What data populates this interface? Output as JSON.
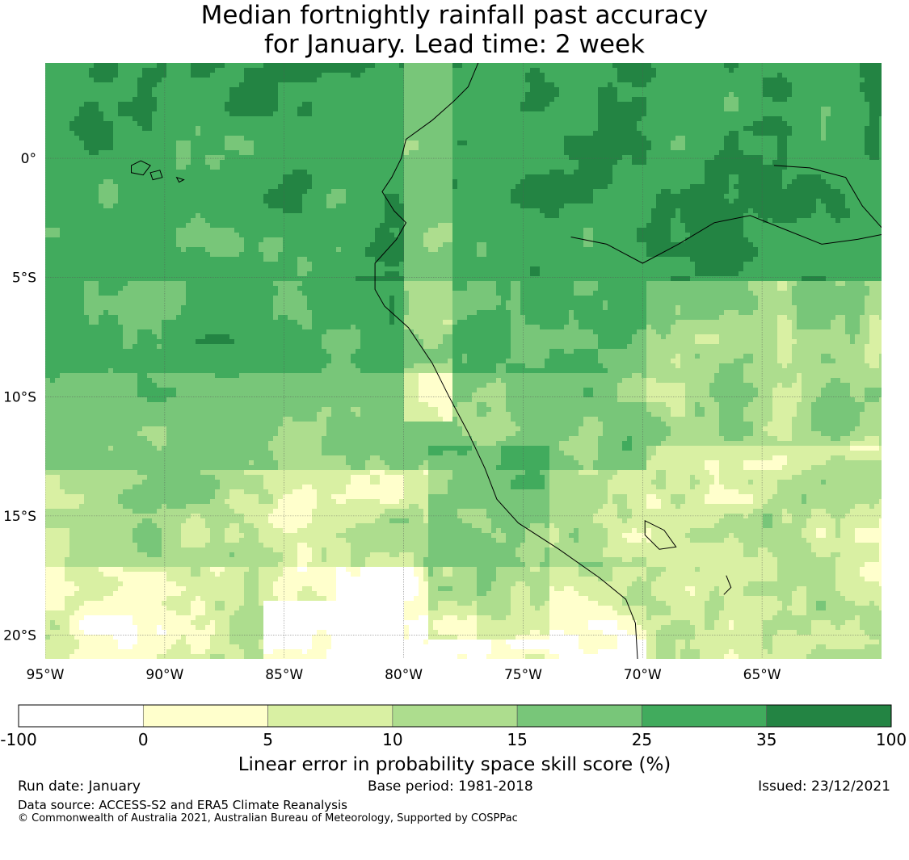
{
  "title": {
    "line1": "Median fortnightly rainfall past accuracy",
    "line2": "for January. Lead time: 2 week"
  },
  "map": {
    "lon_labels": [
      "95°W",
      "90°W",
      "85°W",
      "80°W",
      "75°W",
      "70°W",
      "65°W"
    ],
    "lat_labels": [
      "0°",
      "5°S",
      "10°S",
      "15°S",
      "20°S"
    ],
    "lon_ticks": [
      -95,
      -90,
      -85,
      -80,
      -75,
      -70,
      -65
    ],
    "lat_ticks": [
      0,
      -5,
      -10,
      -15,
      -20
    ],
    "lon_range": [
      -95,
      -60
    ],
    "lat_range": [
      -21,
      4
    ],
    "grid": true
  },
  "colorbar": {
    "title": "Linear error in probability space skill score (%)",
    "boundaries": [
      "-100",
      "0",
      "5",
      "10",
      "15",
      "25",
      "35",
      "100"
    ],
    "colors": [
      "#ffffff",
      "#ffffcc",
      "#d9f0a3",
      "#addd8e",
      "#78c679",
      "#41ab5d",
      "#238443"
    ]
  },
  "footer": {
    "run_date": "Run date: January",
    "base_period": "Base period: 1981-2018",
    "issued": "Issued: 23/12/2021",
    "data_source": "Data source: ACCESS-S2 and ERA5 Climate Reanalysis",
    "copyright": "© Commonwealth of Australia 2021, Australian Bureau of Meteorology, Supported by COSPPac"
  }
}
